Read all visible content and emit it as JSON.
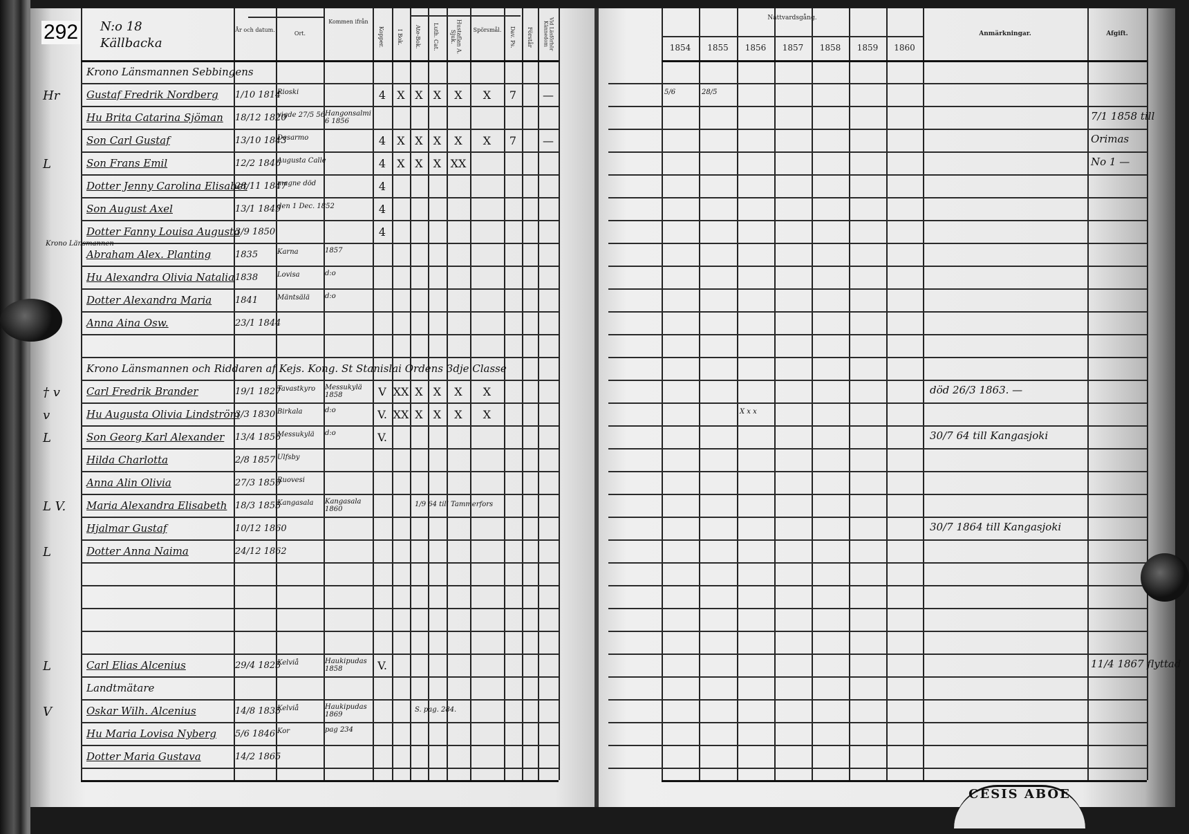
{
  "page_number": "292",
  "household": {
    "number": "N:o 18",
    "place": "Källbacka"
  },
  "left_headers": {
    "date": "År och datum.",
    "place": "Ort.",
    "from": "Kommen ifrån",
    "kopper": "Kopper.",
    "i_bok": "I Bok.",
    "ate_bok": "Ate-Bok.",
    "luth_cat": "Luth. Cat.",
    "hustaflan": "Hustaflan A. Sjuk.",
    "sporsmal": "Spörsmål.",
    "dav_ps": "Dav. Ps.",
    "forstar": "Förstår",
    "kannedom": "Vid Läsförhör Kännedom"
  },
  "right_headers": {
    "communion": "Nattvardsgång.",
    "years": [
      "1854",
      "1855",
      "1856",
      "1857",
      "1858",
      "1859",
      "1860"
    ],
    "remarks": "Anmärkningar.",
    "departure": "Afgift."
  },
  "rows": [
    {
      "heading": "Krono Länsmannen Sebbingens"
    },
    {
      "margin": "Hr",
      "name": "Gustaf Fredrik Nordberg",
      "date": "1/10 1814",
      "place": "Rioski",
      "marks": [
        "4",
        "X",
        "X",
        "X",
        "X",
        "X",
        "7",
        "",
        "—"
      ],
      "years": [
        "5/6",
        "28/5",
        "",
        "",
        "",
        "",
        ""
      ]
    },
    {
      "name": "Hu Brita Catarina Sjöman",
      "date": "18/12 1820",
      "place": "vigde 27/5 56",
      "from": "Hangonsalmi 6 1856",
      "departure": "7/1 1858 till"
    },
    {
      "name": "Son Carl Gustaf",
      "date": "13/10 1843",
      "place": "Desarmo",
      "marks": [
        "4",
        "X",
        "X",
        "X",
        "X",
        "X",
        "7",
        "",
        "—"
      ],
      "departure": "Orimas"
    },
    {
      "margin": "L",
      "name": "Son Frans Emil",
      "date": "12/2 1846",
      "place": "Augusta Calle",
      "marks": [
        "4",
        "X",
        "X",
        "X",
        "XX",
        "",
        "",
        "",
        ""
      ],
      "departure": "No 1 —"
    },
    {
      "name": "Dotter Jenny Carolina Elisabet",
      "date": "28/11 1847",
      "place": "magne död",
      "marks": [
        "4",
        "",
        "",
        "",
        "",
        "",
        "",
        "",
        ""
      ]
    },
    {
      "name": "Son August Axel",
      "date": "13/1 1849",
      "place": "den 1 Dec. 1852",
      "marks": [
        "4",
        "",
        "",
        "",
        "",
        "",
        "",
        "",
        ""
      ]
    },
    {
      "name": "Dotter Fanny Louisa Augusta",
      "date": "3/9 1850",
      "marks": [
        "4",
        "",
        "",
        "",
        "",
        "",
        "",
        "",
        ""
      ]
    },
    {
      "note": "Krono Länsmannen",
      "name": "Abraham Alex. Planting",
      "date": "1835",
      "place": "Karna",
      "from": "1857"
    },
    {
      "name": "Hu Alexandra Olivia Natalia",
      "date": "1838",
      "place": "Lovisa",
      "from": "d:o"
    },
    {
      "name": "Dotter Alexandra Maria",
      "date": "1841",
      "place": "Mäntsälä",
      "from": "d:o"
    },
    {
      "name": "Anna Aina Osw.",
      "date": "23/1 1844"
    },
    {},
    {
      "heading": "Krono Länsmannen och Riddaren af Kejs. Kong. St Stanislai Ordens 3dje Classe"
    },
    {
      "margin": "† v",
      "name": "Carl Fredrik Brander",
      "date": "19/1 1827",
      "place": "Tavastkyro",
      "from": "Messukylä 1858",
      "marks": [
        "V",
        "XX",
        "X",
        "X",
        "X",
        "X",
        "",
        "",
        ""
      ],
      "remarks": "död 26/3 1863. —"
    },
    {
      "margin": "v",
      "name": "Hu Augusta Olivia Lindström",
      "date": "3/3 1830",
      "place": "Birkala",
      "from": "d:o",
      "marks": [
        "V.",
        "XX",
        "X",
        "X",
        "X",
        "X",
        "",
        "",
        ""
      ],
      "years": [
        "",
        "",
        "X x x",
        "",
        "",
        "",
        ""
      ]
    },
    {
      "margin": "L",
      "name": "Son Georg Karl Alexander",
      "date": "13/4 1856",
      "place": "Messukylä",
      "from": "d:o",
      "marks": [
        "V.",
        "",
        "",
        "",
        "",
        "",
        "",
        "",
        ""
      ],
      "remarks": "30/7 64 till Kangasjoki"
    },
    {
      "name": "Hilda Charlotta",
      "date": "2/8 1857",
      "place": "Ulfsby"
    },
    {
      "name": "Anna Alin Olivia",
      "date": "27/3 1859",
      "place": "Ruovesi"
    },
    {
      "margin": "L V.",
      "name": "Maria Alexandra Elisabeth",
      "date": "18/3 1855",
      "place": "Kangasala",
      "from": "Kangasala 1860",
      "note2": "1/9 64 till Tammerfors"
    },
    {
      "name": "Hjalmar Gustaf",
      "date": "10/12 1860",
      "remarks": "30/7 1864 till Kangasjoki"
    },
    {
      "margin": "L",
      "name": "Dotter Anna Naima",
      "date": "24/12 1862"
    },
    {},
    {},
    {},
    {},
    {
      "margin": "L",
      "name": "Carl Elias Alcenius",
      "date": "29/4 1825",
      "place": "Kelviå",
      "from": "Haukipudas 1858",
      "marks": [
        "V.",
        "",
        "",
        "",
        "",
        "",
        "",
        "",
        ""
      ],
      "departure": "11/4 1867 flyttad"
    },
    {
      "heading": "Landtmätare"
    },
    {
      "margin": "V",
      "name": "Oskar Wilh. Alcenius",
      "date": "14/8 1835",
      "place": "Kelviå",
      "from": "Haukipudas 1869",
      "note2": "S. pag. 284."
    },
    {
      "name": "Hu Maria Lovisa Nyberg",
      "date": "5/6 1846",
      "place": "Kor",
      "from": "pag 234"
    },
    {
      "name": "Dotter Maria Gustava",
      "date": "14/2 1865"
    },
    {}
  ],
  "seal_text": "CESIS ABOE"
}
